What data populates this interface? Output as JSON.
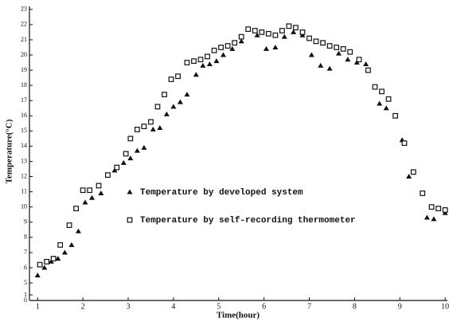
{
  "chart_data": {
    "type": "scatter",
    "xlabel": "Time(hour)",
    "ylabel": "Temperature(°C)",
    "xlim": [
      0.82,
      10.05
    ],
    "xticks": [
      1,
      2,
      3,
      4,
      5,
      6,
      7,
      8,
      9,
      10
    ],
    "ylim": [
      0,
      23.2
    ],
    "yticks": [
      0,
      1,
      5,
      6,
      7,
      8,
      9,
      10,
      11,
      12,
      13,
      14,
      15,
      16,
      17,
      18,
      19,
      20,
      21,
      22,
      23
    ],
    "y_break": [
      1,
      5
    ],
    "series": [
      {
        "name": "Temperature by developed system",
        "marker": "triangle",
        "color": "#111",
        "x": [
          1.0,
          1.15,
          1.3,
          1.45,
          1.6,
          1.75,
          1.9,
          2.05,
          2.2,
          2.4,
          2.55,
          2.7,
          2.9,
          3.05,
          3.2,
          3.35,
          3.55,
          3.7,
          3.85,
          4.0,
          4.15,
          4.3,
          4.5,
          4.65,
          4.8,
          4.95,
          5.1,
          5.3,
          5.5,
          5.65,
          5.85,
          6.05,
          6.25,
          6.45,
          6.65,
          6.85,
          7.05,
          7.25,
          7.45,
          7.65,
          7.85,
          8.05,
          8.25,
          8.55,
          8.7,
          9.05,
          9.2,
          9.6,
          9.75,
          10.0
        ],
        "values": [
          5.5,
          6.0,
          6.4,
          6.6,
          7.0,
          7.5,
          8.4,
          10.3,
          10.6,
          10.9,
          12.1,
          12.4,
          12.9,
          13.2,
          13.7,
          13.9,
          15.1,
          15.2,
          16.1,
          16.6,
          16.9,
          17.4,
          18.7,
          19.3,
          19.4,
          19.6,
          20.0,
          20.4,
          20.9,
          21.7,
          21.3,
          20.4,
          20.5,
          21.2,
          21.5,
          21.3,
          20.0,
          19.3,
          19.1,
          20.1,
          19.7,
          19.5,
          19.4,
          16.8,
          16.5,
          14.4,
          12.0,
          9.3,
          9.2,
          9.6
        ]
      },
      {
        "name": "Temperature by self-recording thermometer",
        "marker": "square",
        "color": "#111",
        "x": [
          1.05,
          1.2,
          1.35,
          1.5,
          1.7,
          1.85,
          2.0,
          2.15,
          2.35,
          2.55,
          2.75,
          2.95,
          3.05,
          3.2,
          3.35,
          3.5,
          3.65,
          3.8,
          3.95,
          4.1,
          4.3,
          4.45,
          4.6,
          4.75,
          4.9,
          5.05,
          5.2,
          5.35,
          5.5,
          5.65,
          5.8,
          5.95,
          6.1,
          6.25,
          6.4,
          6.55,
          6.7,
          6.85,
          7.0,
          7.15,
          7.3,
          7.45,
          7.6,
          7.75,
          7.9,
          8.1,
          8.3,
          8.45,
          8.6,
          8.75,
          8.9,
          9.1,
          9.3,
          9.5,
          9.7,
          9.85,
          10.0
        ],
        "values": [
          6.2,
          6.4,
          6.6,
          7.5,
          8.8,
          9.9,
          11.1,
          11.1,
          11.4,
          12.1,
          12.6,
          13.5,
          14.5,
          15.1,
          15.3,
          15.6,
          16.6,
          17.4,
          18.4,
          18.6,
          19.5,
          19.6,
          19.7,
          19.9,
          20.3,
          20.5,
          20.6,
          20.8,
          21.2,
          21.7,
          21.6,
          21.5,
          21.4,
          21.3,
          21.6,
          21.9,
          21.8,
          21.5,
          21.1,
          20.9,
          20.8,
          20.6,
          20.5,
          20.4,
          20.2,
          19.7,
          19.0,
          17.9,
          17.6,
          17.1,
          16.0,
          14.2,
          12.3,
          10.9,
          10.0,
          9.9,
          9.8
        ]
      }
    ]
  }
}
